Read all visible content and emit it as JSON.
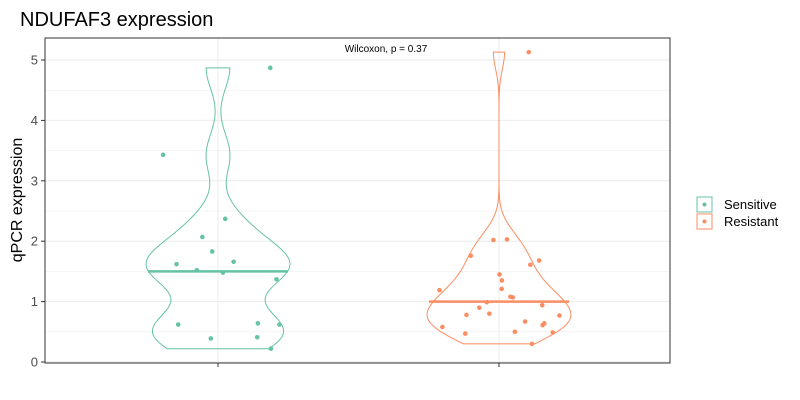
{
  "chart_data": {
    "type": "violin",
    "title": "NDUFAF3 expression",
    "xlabel": "",
    "ylabel": "qPCR expression",
    "ylim": [
      0,
      5.3
    ],
    "yticks": [
      0,
      1,
      2,
      3,
      4,
      5
    ],
    "grid": true,
    "legend_position": "right",
    "annotation": "Wilcoxon, p = 0.37",
    "groups": [
      {
        "name": "Sensitive",
        "color": "#66c2a5",
        "median": 1.5,
        "points": [
          4.87,
          3.43,
          2.37,
          2.07,
          1.83,
          1.66,
          1.62,
          1.52,
          1.48,
          1.37,
          0.64,
          0.62,
          0.62,
          0.41,
          0.39,
          0.22
        ]
      },
      {
        "name": "Resistant",
        "color": "#fc8d62",
        "median": 1.0,
        "points": [
          5.13,
          2.03,
          2.02,
          1.76,
          1.68,
          1.61,
          1.45,
          1.35,
          1.21,
          1.19,
          1.08,
          1.07,
          0.99,
          0.94,
          0.9,
          0.8,
          0.78,
          0.77,
          0.67,
          0.64,
          0.61,
          0.58,
          0.5,
          0.49,
          0.47,
          0.3
        ]
      }
    ]
  }
}
